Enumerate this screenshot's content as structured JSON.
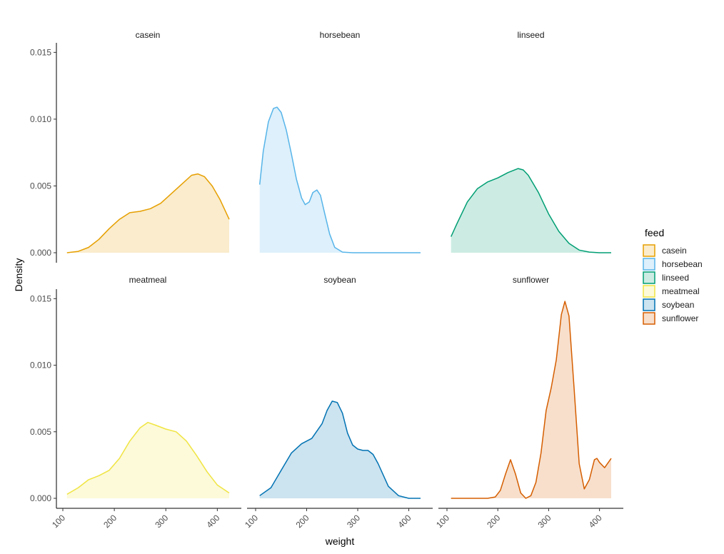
{
  "chart_data": {
    "type": "area",
    "subtype": "faceted-density",
    "xlabel": "weight",
    "ylabel": "Density",
    "xlim": [
      100,
      430
    ],
    "ylim": [
      0,
      0.0155
    ],
    "x_ticks": [
      100,
      200,
      300,
      400
    ],
    "x_tick_labels": [
      "100",
      "200",
      "300",
      "400"
    ],
    "y_ticks": [
      0,
      0.005,
      0.01,
      0.015
    ],
    "y_tick_labels": [
      "0.000",
      "0.005",
      "0.010",
      "0.015"
    ],
    "grid": false,
    "legend": {
      "title": "feed",
      "position": "right"
    },
    "panels": [
      {
        "name": "casein",
        "color": "#E69F00",
        "x": [
          108,
          130,
          150,
          170,
          190,
          210,
          230,
          250,
          270,
          290,
          310,
          330,
          350,
          362,
          375,
          390,
          405,
          423
        ],
        "y": [
          0.0,
          0.0001,
          0.0004,
          0.001,
          0.0018,
          0.0025,
          0.003,
          0.0031,
          0.0033,
          0.0037,
          0.0044,
          0.0051,
          0.0058,
          0.0059,
          0.0057,
          0.005,
          0.004,
          0.0025
        ]
      },
      {
        "name": "horsebean",
        "color": "#56B4E9",
        "x": [
          108,
          115,
          125,
          135,
          142,
          150,
          160,
          170,
          180,
          190,
          197,
          205,
          212,
          220,
          227,
          235,
          245,
          255,
          270,
          290,
          320,
          423
        ],
        "y": [
          0.0051,
          0.0076,
          0.0098,
          0.0108,
          0.0109,
          0.0105,
          0.0092,
          0.0074,
          0.0055,
          0.0041,
          0.0036,
          0.0038,
          0.0045,
          0.0047,
          0.0043,
          0.003,
          0.0014,
          0.0004,
          5e-05,
          0.0,
          0.0,
          0.0
        ]
      },
      {
        "name": "linseed",
        "color": "#009E73",
        "x": [
          108,
          120,
          140,
          160,
          180,
          200,
          220,
          240,
          250,
          260,
          280,
          300,
          320,
          340,
          360,
          380,
          400,
          423
        ],
        "y": [
          0.0012,
          0.0022,
          0.0038,
          0.0048,
          0.0053,
          0.0056,
          0.006,
          0.0063,
          0.0062,
          0.0058,
          0.0045,
          0.0029,
          0.0016,
          0.0007,
          0.0002,
          5e-05,
          0.0,
          0.0
        ]
      },
      {
        "name": "meatmeal",
        "color": "#F0E442",
        "x": [
          108,
          130,
          150,
          170,
          190,
          210,
          230,
          250,
          265,
          280,
          300,
          320,
          340,
          360,
          380,
          400,
          423
        ],
        "y": [
          0.0003,
          0.0008,
          0.0014,
          0.0017,
          0.0021,
          0.003,
          0.0043,
          0.0053,
          0.0057,
          0.0055,
          0.0052,
          0.005,
          0.0043,
          0.0032,
          0.002,
          0.001,
          0.0004
        ]
      },
      {
        "name": "soybean",
        "color": "#0072B2",
        "x": [
          108,
          130,
          150,
          170,
          190,
          210,
          230,
          240,
          250,
          260,
          270,
          280,
          290,
          300,
          310,
          320,
          330,
          340,
          360,
          380,
          400,
          423
        ],
        "y": [
          0.0002,
          0.0008,
          0.0021,
          0.0034,
          0.0041,
          0.0045,
          0.0056,
          0.0066,
          0.0073,
          0.0072,
          0.0064,
          0.0049,
          0.004,
          0.0037,
          0.0036,
          0.0036,
          0.0033,
          0.0026,
          0.0009,
          0.0002,
          0.0,
          0.0
        ]
      },
      {
        "name": "sunflower",
        "color": "#D55E00",
        "x": [
          108,
          150,
          180,
          195,
          205,
          215,
          225,
          235,
          245,
          255,
          265,
          275,
          285,
          295,
          305,
          315,
          325,
          332,
          340,
          350,
          360,
          370,
          380,
          390,
          395,
          400,
          410,
          423
        ],
        "y": [
          0.0,
          0.0,
          0.0,
          0.0001,
          0.0006,
          0.0018,
          0.0029,
          0.0018,
          0.0004,
          0.0,
          0.0002,
          0.0012,
          0.0034,
          0.0066,
          0.0083,
          0.0104,
          0.0138,
          0.0148,
          0.0137,
          0.0083,
          0.0026,
          0.0007,
          0.0014,
          0.0029,
          0.003,
          0.0027,
          0.0023,
          0.003
        ]
      }
    ]
  }
}
